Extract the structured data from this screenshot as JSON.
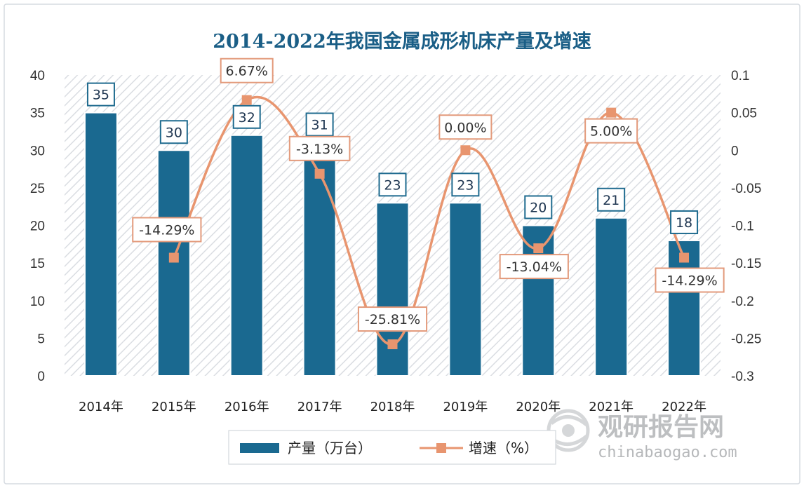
{
  "chart_data": {
    "type": "bar",
    "title": "2014-2022年我国金属成形机床产量及增速",
    "categories": [
      "2014年",
      "2015年",
      "2016年",
      "2017年",
      "2018年",
      "2019年",
      "2020年",
      "2021年",
      "2022年"
    ],
    "series": [
      {
        "name": "产量（万台）",
        "type": "bar",
        "axis": "left",
        "values": [
          35,
          30,
          32,
          31,
          23,
          23,
          20,
          21,
          18
        ],
        "labels": [
          "35",
          "30",
          "32",
          "31",
          "23",
          "23",
          "20",
          "21",
          "18"
        ],
        "color": "#1a6990"
      },
      {
        "name": "增速（%）",
        "type": "line",
        "axis": "right",
        "values": [
          null,
          -0.1429,
          0.0667,
          -0.0313,
          -0.2581,
          0.0,
          -0.1304,
          0.05,
          -0.1429
        ],
        "labels": [
          "",
          "-14.29%",
          "6.67%",
          "-3.13%",
          "-25.81%",
          "0.00%",
          "-13.04%",
          "5.00%",
          "-14.29%"
        ],
        "color": "#e8956f"
      }
    ],
    "y_left": {
      "min": 0,
      "max": 40,
      "ticks": [
        0,
        5,
        10,
        15,
        20,
        25,
        30,
        35,
        40
      ],
      "tick_labels": [
        "0",
        "5",
        "10",
        "15",
        "20",
        "25",
        "30",
        "35",
        "40"
      ]
    },
    "y_right": {
      "min": -0.3,
      "max": 0.1,
      "ticks": [
        -0.3,
        -0.25,
        -0.2,
        -0.15,
        -0.1,
        -0.05,
        0,
        0.05,
        0.1
      ],
      "tick_labels": [
        "-0.3",
        "-0.25",
        "-0.2",
        "-0.15",
        "-0.1",
        "-0.05",
        "0",
        "0.05",
        "0.1"
      ]
    },
    "legend": {
      "position": "bottom"
    },
    "grid": false
  },
  "watermark": {
    "text": "观研报告网",
    "url": "chinabaogao.com",
    "icon": "globe-icon"
  },
  "colors": {
    "title": "#1a5e86",
    "bar": "#1a6990",
    "line": "#e8956f",
    "hatch": "#dadde2"
  }
}
